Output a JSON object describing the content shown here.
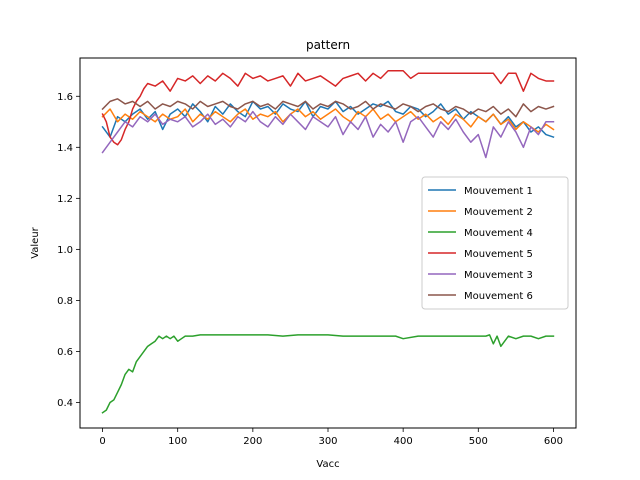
{
  "chart_data": {
    "type": "line",
    "title": "pattern",
    "xlabel": "Vacc",
    "ylabel": "Valeur",
    "xlim": [
      -30,
      630
    ],
    "ylim": [
      0.3,
      1.75
    ],
    "xticks": [
      0,
      100,
      200,
      300,
      400,
      500,
      600
    ],
    "yticks": [
      0.4,
      0.6,
      0.8,
      1.0,
      1.2,
      1.4,
      1.6
    ],
    "ytick_labels": [
      "0.4",
      "0.6",
      "0.8",
      "1.0",
      "1.2",
      "1.4",
      "1.6"
    ],
    "grid": false,
    "legend_position": "center-right",
    "series": [
      {
        "name": "Mouvement 1",
        "color": "#1f77b4",
        "x": [
          0,
          10,
          20,
          30,
          40,
          50,
          60,
          70,
          80,
          90,
          100,
          110,
          120,
          130,
          140,
          150,
          160,
          170,
          180,
          190,
          200,
          210,
          220,
          230,
          240,
          250,
          260,
          270,
          280,
          290,
          300,
          310,
          320,
          330,
          340,
          350,
          360,
          370,
          380,
          390,
          400,
          410,
          420,
          430,
          440,
          450,
          460,
          470,
          480,
          490,
          500,
          510,
          520,
          530,
          540,
          550,
          560,
          570,
          580,
          590,
          600
        ],
        "y": [
          1.48,
          1.44,
          1.52,
          1.5,
          1.53,
          1.55,
          1.51,
          1.54,
          1.47,
          1.53,
          1.55,
          1.52,
          1.57,
          1.54,
          1.5,
          1.56,
          1.53,
          1.57,
          1.54,
          1.52,
          1.58,
          1.55,
          1.56,
          1.53,
          1.57,
          1.55,
          1.54,
          1.58,
          1.52,
          1.56,
          1.55,
          1.58,
          1.54,
          1.56,
          1.53,
          1.55,
          1.57,
          1.56,
          1.58,
          1.54,
          1.53,
          1.56,
          1.55,
          1.52,
          1.54,
          1.57,
          1.53,
          1.55,
          1.51,
          1.54,
          1.52,
          1.5,
          1.53,
          1.49,
          1.52,
          1.48,
          1.5,
          1.46,
          1.48,
          1.45,
          1.44
        ]
      },
      {
        "name": "Mouvement 2",
        "color": "#ff7f0e",
        "x": [
          0,
          10,
          20,
          30,
          40,
          50,
          60,
          70,
          80,
          90,
          100,
          110,
          120,
          130,
          140,
          150,
          160,
          170,
          180,
          190,
          200,
          210,
          220,
          230,
          240,
          250,
          260,
          270,
          280,
          290,
          300,
          310,
          320,
          330,
          340,
          350,
          360,
          370,
          380,
          390,
          400,
          410,
          420,
          430,
          440,
          450,
          460,
          470,
          480,
          490,
          500,
          510,
          520,
          530,
          540,
          550,
          560,
          570,
          580,
          590,
          600
        ],
        "y": [
          1.52,
          1.55,
          1.5,
          1.53,
          1.51,
          1.54,
          1.52,
          1.5,
          1.53,
          1.51,
          1.52,
          1.55,
          1.5,
          1.53,
          1.51,
          1.54,
          1.52,
          1.5,
          1.53,
          1.55,
          1.51,
          1.53,
          1.52,
          1.54,
          1.5,
          1.53,
          1.55,
          1.52,
          1.54,
          1.51,
          1.53,
          1.55,
          1.52,
          1.5,
          1.54,
          1.52,
          1.55,
          1.51,
          1.53,
          1.5,
          1.52,
          1.54,
          1.51,
          1.53,
          1.5,
          1.52,
          1.49,
          1.53,
          1.51,
          1.48,
          1.52,
          1.5,
          1.53,
          1.49,
          1.51,
          1.47,
          1.5,
          1.48,
          1.46,
          1.49,
          1.47
        ]
      },
      {
        "name": "Mouvement 4",
        "color": "#2ca02c",
        "x": [
          0,
          5,
          10,
          15,
          20,
          25,
          30,
          35,
          40,
          45,
          50,
          55,
          60,
          65,
          70,
          75,
          80,
          85,
          90,
          95,
          100,
          105,
          110,
          120,
          130,
          140,
          150,
          160,
          180,
          200,
          220,
          240,
          260,
          280,
          300,
          320,
          340,
          360,
          380,
          390,
          400,
          420,
          440,
          460,
          480,
          500,
          510,
          515,
          520,
          525,
          530,
          540,
          550,
          560,
          570,
          580,
          590,
          600
        ],
        "y": [
          0.36,
          0.37,
          0.4,
          0.41,
          0.44,
          0.47,
          0.51,
          0.53,
          0.52,
          0.56,
          0.58,
          0.6,
          0.62,
          0.63,
          0.64,
          0.66,
          0.65,
          0.66,
          0.65,
          0.66,
          0.64,
          0.65,
          0.66,
          0.66,
          0.665,
          0.665,
          0.665,
          0.665,
          0.665,
          0.665,
          0.665,
          0.66,
          0.665,
          0.665,
          0.665,
          0.66,
          0.66,
          0.66,
          0.66,
          0.66,
          0.65,
          0.66,
          0.66,
          0.66,
          0.66,
          0.66,
          0.66,
          0.665,
          0.63,
          0.66,
          0.62,
          0.66,
          0.65,
          0.66,
          0.66,
          0.65,
          0.66,
          0.66
        ]
      },
      {
        "name": "Mouvement 5",
        "color": "#d62728",
        "x": [
          0,
          5,
          10,
          15,
          20,
          25,
          30,
          35,
          40,
          45,
          50,
          55,
          60,
          70,
          80,
          90,
          100,
          110,
          120,
          130,
          140,
          150,
          160,
          170,
          180,
          190,
          200,
          210,
          220,
          230,
          240,
          250,
          260,
          270,
          280,
          290,
          300,
          310,
          320,
          330,
          340,
          350,
          360,
          370,
          380,
          390,
          400,
          410,
          420,
          440,
          460,
          480,
          500,
          510,
          520,
          530,
          540,
          550,
          560,
          570,
          580,
          590,
          600
        ],
        "y": [
          1.53,
          1.5,
          1.44,
          1.42,
          1.41,
          1.43,
          1.47,
          1.5,
          1.55,
          1.58,
          1.6,
          1.63,
          1.65,
          1.64,
          1.66,
          1.62,
          1.67,
          1.66,
          1.68,
          1.65,
          1.68,
          1.66,
          1.69,
          1.67,
          1.64,
          1.69,
          1.67,
          1.68,
          1.66,
          1.67,
          1.68,
          1.64,
          1.69,
          1.66,
          1.67,
          1.68,
          1.66,
          1.64,
          1.67,
          1.68,
          1.69,
          1.66,
          1.69,
          1.67,
          1.7,
          1.7,
          1.7,
          1.67,
          1.69,
          1.69,
          1.69,
          1.69,
          1.69,
          1.69,
          1.69,
          1.65,
          1.69,
          1.69,
          1.62,
          1.69,
          1.67,
          1.66,
          1.66
        ]
      },
      {
        "name": "Mouvement 3",
        "color": "#9467bd",
        "x": [
          0,
          10,
          20,
          30,
          40,
          50,
          60,
          70,
          80,
          90,
          100,
          110,
          120,
          130,
          140,
          150,
          160,
          170,
          180,
          190,
          200,
          210,
          220,
          230,
          240,
          250,
          260,
          270,
          280,
          290,
          300,
          310,
          320,
          330,
          340,
          350,
          360,
          370,
          380,
          390,
          400,
          410,
          420,
          430,
          440,
          450,
          460,
          470,
          480,
          490,
          500,
          510,
          520,
          530,
          540,
          550,
          560,
          570,
          580,
          590,
          600
        ],
        "y": [
          1.38,
          1.42,
          1.46,
          1.5,
          1.48,
          1.52,
          1.5,
          1.53,
          1.49,
          1.51,
          1.5,
          1.52,
          1.48,
          1.5,
          1.53,
          1.49,
          1.51,
          1.48,
          1.52,
          1.5,
          1.54,
          1.5,
          1.48,
          1.52,
          1.49,
          1.53,
          1.5,
          1.47,
          1.52,
          1.5,
          1.48,
          1.52,
          1.45,
          1.5,
          1.47,
          1.52,
          1.44,
          1.49,
          1.46,
          1.5,
          1.42,
          1.5,
          1.52,
          1.48,
          1.44,
          1.5,
          1.47,
          1.51,
          1.46,
          1.42,
          1.45,
          1.36,
          1.48,
          1.44,
          1.5,
          1.46,
          1.4,
          1.48,
          1.45,
          1.5,
          1.5
        ]
      },
      {
        "name": "Mouvement 6",
        "color": "#8c564b",
        "x": [
          0,
          10,
          20,
          30,
          40,
          50,
          60,
          70,
          80,
          90,
          100,
          110,
          120,
          130,
          140,
          150,
          160,
          170,
          180,
          190,
          200,
          210,
          220,
          230,
          240,
          250,
          260,
          270,
          280,
          290,
          300,
          310,
          320,
          330,
          340,
          350,
          360,
          370,
          380,
          390,
          400,
          410,
          420,
          430,
          440,
          450,
          460,
          470,
          480,
          490,
          500,
          510,
          520,
          530,
          540,
          550,
          560,
          570,
          580,
          590,
          600
        ],
        "y": [
          1.55,
          1.58,
          1.59,
          1.57,
          1.58,
          1.56,
          1.58,
          1.55,
          1.57,
          1.56,
          1.58,
          1.57,
          1.55,
          1.58,
          1.56,
          1.57,
          1.58,
          1.56,
          1.55,
          1.57,
          1.58,
          1.56,
          1.57,
          1.55,
          1.58,
          1.57,
          1.56,
          1.58,
          1.55,
          1.57,
          1.56,
          1.58,
          1.57,
          1.55,
          1.56,
          1.58,
          1.55,
          1.57,
          1.56,
          1.55,
          1.57,
          1.56,
          1.54,
          1.56,
          1.57,
          1.55,
          1.54,
          1.56,
          1.55,
          1.53,
          1.55,
          1.54,
          1.56,
          1.53,
          1.55,
          1.52,
          1.57,
          1.54,
          1.56,
          1.55,
          1.56
        ]
      }
    ]
  }
}
